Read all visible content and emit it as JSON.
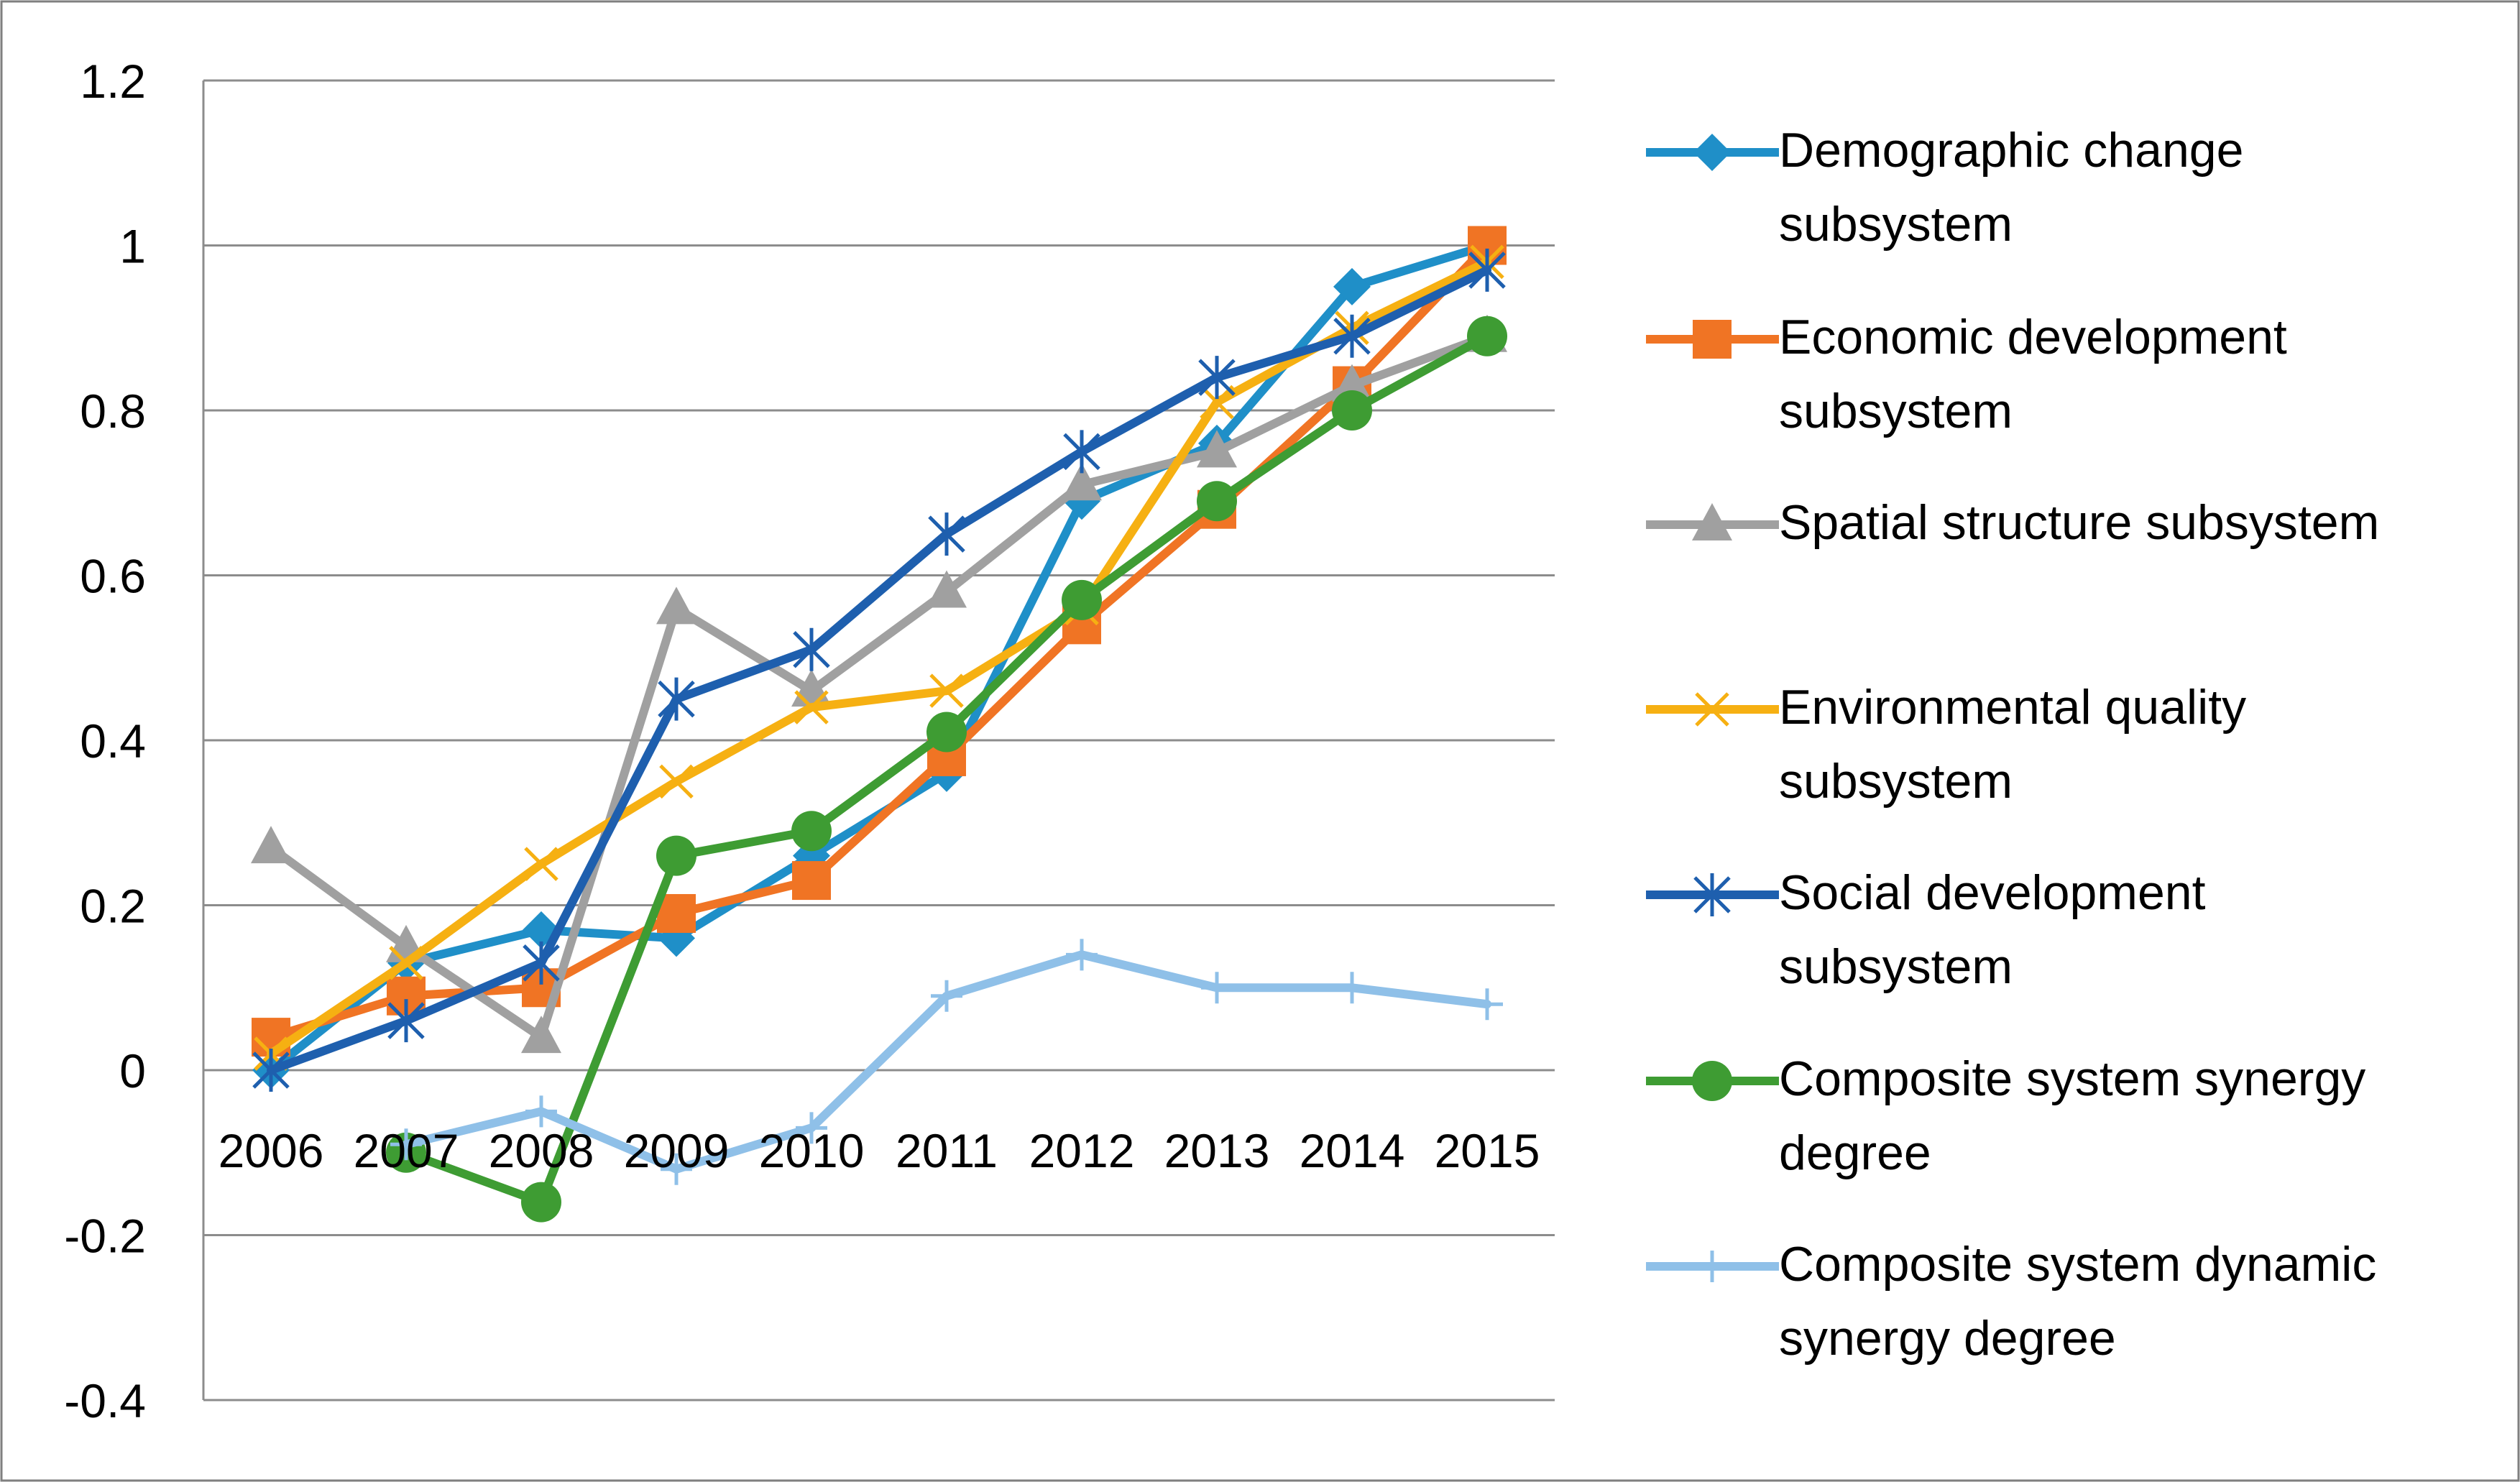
{
  "chart_data": {
    "type": "line",
    "title": "",
    "xlabel": "",
    "ylabel": "",
    "categories": [
      "2006",
      "2007",
      "2008",
      "2009",
      "2010",
      "2011",
      "2012",
      "2013",
      "2014",
      "2015"
    ],
    "ylim": [
      -0.4,
      1.2
    ],
    "y_ticks": [
      -0.4,
      -0.2,
      0,
      0.2,
      0.4,
      0.6,
      0.8,
      1,
      1.2
    ],
    "y_tick_labels": [
      "-0.4",
      "-0.2",
      "0",
      "0.2",
      "0.4",
      "0.6",
      "0.8",
      "1",
      "1.2"
    ],
    "grid": true,
    "legend_position": "right",
    "series": [
      {
        "name": "Demographic change subsystem",
        "legend_lines": [
          "Demographic change",
          "subsystem"
        ],
        "color": "#1f8fc8",
        "marker": "diamond",
        "values": [
          0.0,
          0.13,
          0.17,
          0.16,
          0.26,
          0.36,
          0.69,
          0.76,
          0.95,
          1.0
        ]
      },
      {
        "name": "Economic development subsystem",
        "legend_lines": [
          "Economic development",
          "subsystem"
        ],
        "color": "#f07424",
        "marker": "square",
        "values": [
          0.04,
          0.09,
          0.1,
          0.19,
          0.23,
          0.38,
          0.54,
          0.68,
          0.83,
          1.0
        ]
      },
      {
        "name": "Spatial structure subsystem",
        "legend_lines": [
          "Spatial structure subsystem"
        ],
        "color": "#a0a0a0",
        "marker": "triangle",
        "values": [
          0.27,
          0.15,
          0.04,
          0.56,
          0.46,
          0.58,
          0.71,
          0.75,
          0.83,
          0.89
        ]
      },
      {
        "name": "Environmental quality subsystem",
        "legend_lines": [
          "Environmental quality",
          "subsystem"
        ],
        "color": "#f6b012",
        "marker": "x",
        "values": [
          0.02,
          0.13,
          0.25,
          0.35,
          0.44,
          0.46,
          0.56,
          0.81,
          0.9,
          0.98
        ]
      },
      {
        "name": "Social development subsystem",
        "legend_lines": [
          "Social development",
          "subsystem"
        ],
        "color": "#1e5fae",
        "marker": "asterisk",
        "values": [
          0.0,
          0.06,
          0.13,
          0.45,
          0.51,
          0.65,
          0.75,
          0.84,
          0.89,
          0.97
        ]
      },
      {
        "name": "Composite system synergy degree",
        "legend_lines": [
          "Composite system synergy",
          "degree"
        ],
        "color": "#3e9c33",
        "marker": "circle",
        "values": [
          null,
          -0.1,
          -0.16,
          0.26,
          0.29,
          0.41,
          0.57,
          0.69,
          0.8,
          0.89
        ]
      },
      {
        "name": "Composite system dynamic synergy degree",
        "legend_lines": [
          "Composite system dynamic",
          "synergy degree"
        ],
        "color": "#8fc0e8",
        "marker": "plus",
        "values": [
          null,
          -0.09,
          -0.05,
          -0.12,
          -0.07,
          0.09,
          0.14,
          0.1,
          0.1,
          0.08
        ]
      }
    ]
  }
}
